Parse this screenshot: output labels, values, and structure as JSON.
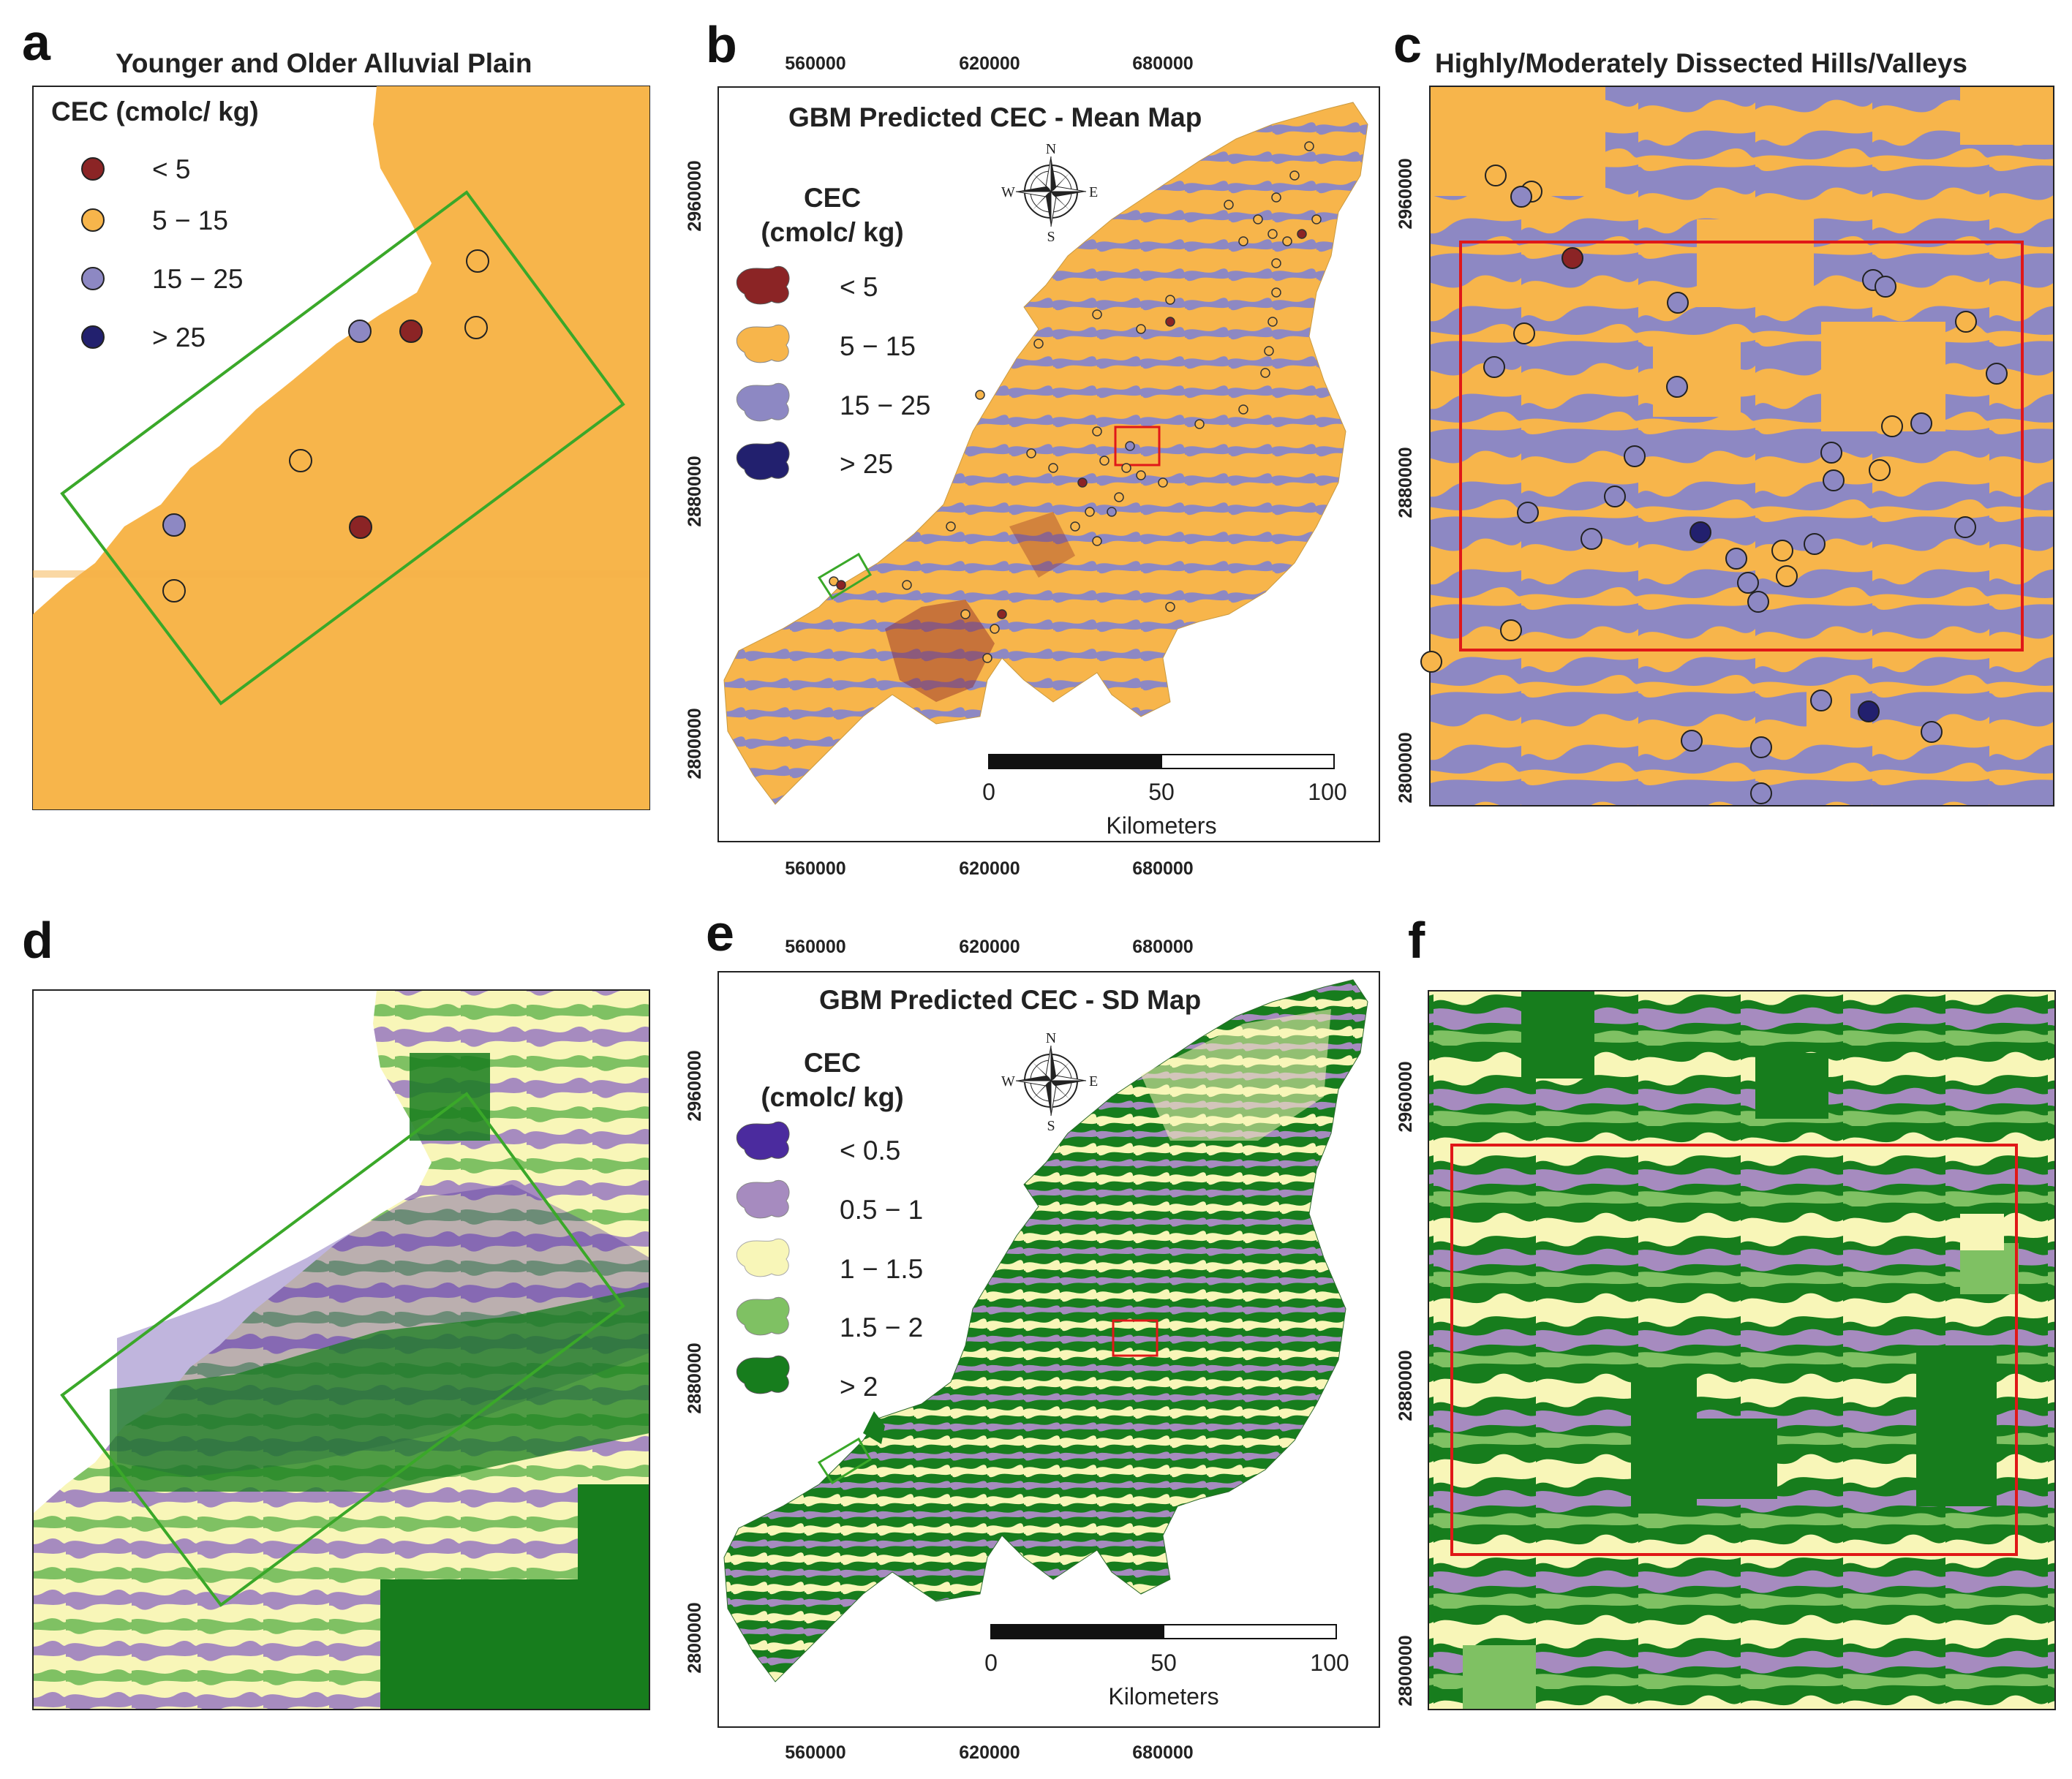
{
  "colors": {
    "cec_lt5": "#8b2425",
    "cec_5_15": "#f7b54b",
    "cec_15_25": "#8d88c3",
    "cec_gt25": "#22206e",
    "sd_lt05": "#4b2b9e",
    "sd_05_1": "#a68bbf",
    "sd_1_15": "#f8f6b8",
    "sd_15_2": "#7fc163",
    "sd_gt2": "#177d1d",
    "frame_green": "#3aa829",
    "frame_red": "#e01818"
  },
  "panels": {
    "a": {
      "label": "a",
      "title": "Younger and Older Alluvial Plain",
      "legend_title": "CEC  (cmolc/ kg)",
      "legend": [
        "< 5",
        "5 − 15",
        "15 − 25",
        "> 25"
      ]
    },
    "b": {
      "label": "b",
      "title": "GBM Predicted CEC - Mean Map",
      "legend_title_1": "CEC",
      "legend_title_2": "(cmolc/ kg)",
      "legend": [
        "< 5",
        "5 − 15",
        "15 − 25",
        "> 25"
      ],
      "x_ticks": [
        "560000",
        "620000",
        "680000"
      ],
      "y_ticks": [
        "2960000",
        "2880000",
        "2800000"
      ],
      "scale_ticks": [
        "0",
        "50",
        "100"
      ],
      "scale_unit": "Kilometers",
      "compass": [
        "N",
        "S",
        "E",
        "W"
      ]
    },
    "c": {
      "label": "c",
      "title": "Highly/Moderately Dissected Hills/Valleys",
      "y_ticks": [
        "2960000",
        "2880000",
        "2800000"
      ]
    },
    "d": {
      "label": "d"
    },
    "e": {
      "label": "e",
      "title": "GBM Predicted CEC - SD Map",
      "legend_title_1": "CEC",
      "legend_title_2": "(cmolc/ kg)",
      "legend": [
        "< 0.5",
        "0.5 − 1",
        "1 − 1.5",
        "1.5 − 2",
        "> 2"
      ],
      "x_ticks": [
        "560000",
        "620000",
        "680000"
      ],
      "y_ticks": [
        "2960000",
        "2880000",
        "2800000"
      ],
      "scale_ticks": [
        "0",
        "50",
        "100"
      ],
      "scale_unit": "Kilometers",
      "compass": [
        "N",
        "S",
        "E",
        "W"
      ]
    },
    "f": {
      "label": "f",
      "y_ticks": [
        "2960000",
        "2880000",
        "2800000"
      ]
    }
  }
}
